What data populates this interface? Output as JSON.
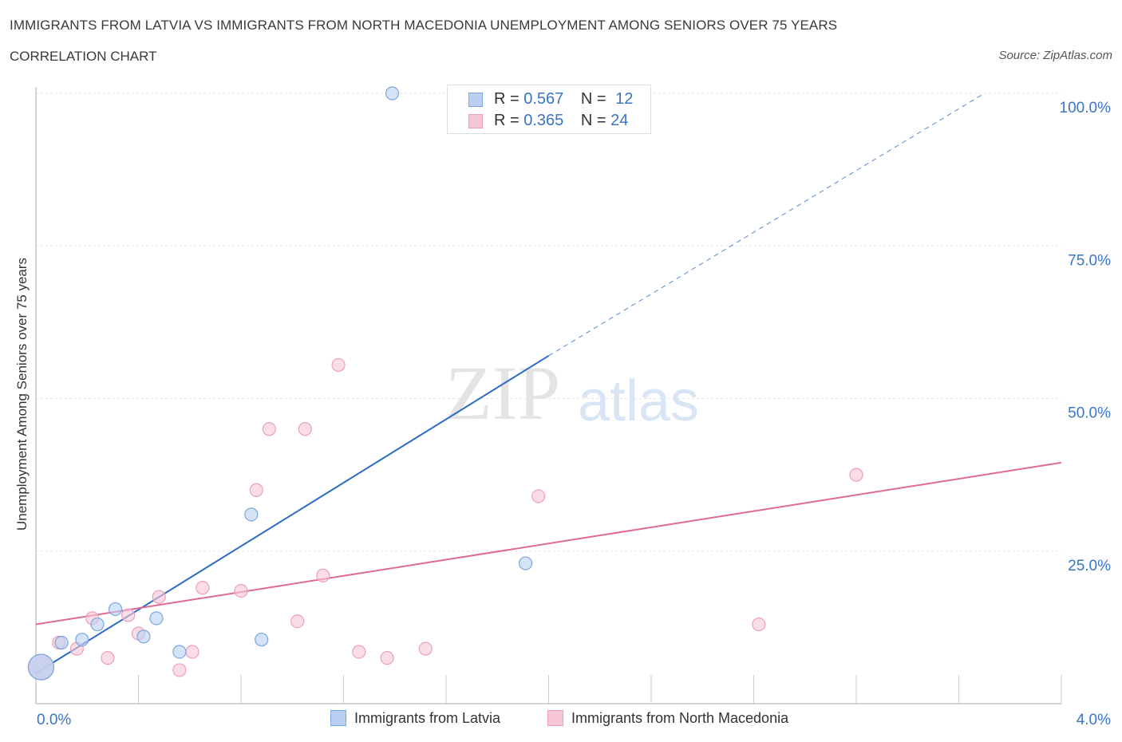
{
  "header": {
    "title": "IMMIGRANTS FROM LATVIA VS IMMIGRANTS FROM NORTH MACEDONIA UNEMPLOYMENT AMONG SENIORS OVER 75 YEARS",
    "subtitle": "CORRELATION CHART",
    "source": "Source: ZipAtlas.com"
  },
  "watermark": {
    "zip": "ZIP",
    "atlas": "atlas"
  },
  "stats_legend": {
    "r_label": "R = ",
    "n_label": "N = ",
    "rows": [
      {
        "r": "0.567",
        "n": "12"
      },
      {
        "r": "0.365",
        "n": "24"
      }
    ]
  },
  "chart_data": {
    "type": "scatter",
    "title": "IMMIGRANTS FROM LATVIA VS IMMIGRANTS FROM NORTH MACEDONIA UNEMPLOYMENT AMONG SENIORS OVER 75 YEARS",
    "ylabel": "Unemployment Among Seniors over 75 years",
    "xlim": [
      0,
      4
    ],
    "ylim": [
      0,
      100
    ],
    "x_tick_labels": [
      "0.0%",
      "4.0%"
    ],
    "y_ticks": [
      25,
      50,
      75,
      100
    ],
    "y_tick_labels": [
      "25.0%",
      "50.0%",
      "75.0%",
      "100.0%"
    ],
    "grid": true,
    "legend_position": "bottom",
    "series": [
      {
        "name": "Immigrants from Latvia",
        "color": "#7aa6e0",
        "fill": "#b9d0f2",
        "line_color": "#2d6cc4",
        "r": "0.567",
        "n": "12",
        "points": [
          {
            "x": 0.02,
            "y": 6.0,
            "big": true
          },
          {
            "x": 0.1,
            "y": 10.0
          },
          {
            "x": 0.18,
            "y": 10.5
          },
          {
            "x": 0.24,
            "y": 13.0
          },
          {
            "x": 0.31,
            "y": 15.5
          },
          {
            "x": 0.42,
            "y": 11.0
          },
          {
            "x": 0.47,
            "y": 14.0
          },
          {
            "x": 0.56,
            "y": 8.5
          },
          {
            "x": 0.84,
            "y": 31.0
          },
          {
            "x": 0.88,
            "y": 10.5
          },
          {
            "x": 1.39,
            "y": 100.0
          },
          {
            "x": 1.91,
            "y": 23.0
          }
        ],
        "trend": {
          "x0": 0.0,
          "y0": 5.0,
          "x1": 2.0,
          "y1": 57.0,
          "x_dash_end": 3.7,
          "y_dash_end": 100.0
        }
      },
      {
        "name": "Immigrants from North Macedonia",
        "color": "#eba0b8",
        "fill": "#f7c6d5",
        "line_color": "#e06a94",
        "r": "0.365",
        "n": "24",
        "points": [
          {
            "x": 0.02,
            "y": 6.0,
            "big": true
          },
          {
            "x": 0.09,
            "y": 10.0
          },
          {
            "x": 0.16,
            "y": 9.0
          },
          {
            "x": 0.22,
            "y": 14.0
          },
          {
            "x": 0.28,
            "y": 7.5
          },
          {
            "x": 0.36,
            "y": 14.5
          },
          {
            "x": 0.4,
            "y": 11.5
          },
          {
            "x": 0.48,
            "y": 17.5
          },
          {
            "x": 0.56,
            "y": 5.5
          },
          {
            "x": 0.61,
            "y": 8.5
          },
          {
            "x": 0.65,
            "y": 19.0
          },
          {
            "x": 0.8,
            "y": 18.5
          },
          {
            "x": 0.86,
            "y": 35.0
          },
          {
            "x": 0.91,
            "y": 45.0
          },
          {
            "x": 1.02,
            "y": 13.5
          },
          {
            "x": 1.05,
            "y": 45.0
          },
          {
            "x": 1.12,
            "y": 21.0
          },
          {
            "x": 1.18,
            "y": 55.5
          },
          {
            "x": 1.26,
            "y": 8.5
          },
          {
            "x": 1.37,
            "y": 7.5
          },
          {
            "x": 1.52,
            "y": 9.0
          },
          {
            "x": 1.96,
            "y": 34.0
          },
          {
            "x": 2.82,
            "y": 13.0
          },
          {
            "x": 3.2,
            "y": 37.5
          }
        ],
        "trend": {
          "x0": 0.0,
          "y0": 13.0,
          "x1": 4.0,
          "y1": 39.5
        }
      }
    ]
  }
}
